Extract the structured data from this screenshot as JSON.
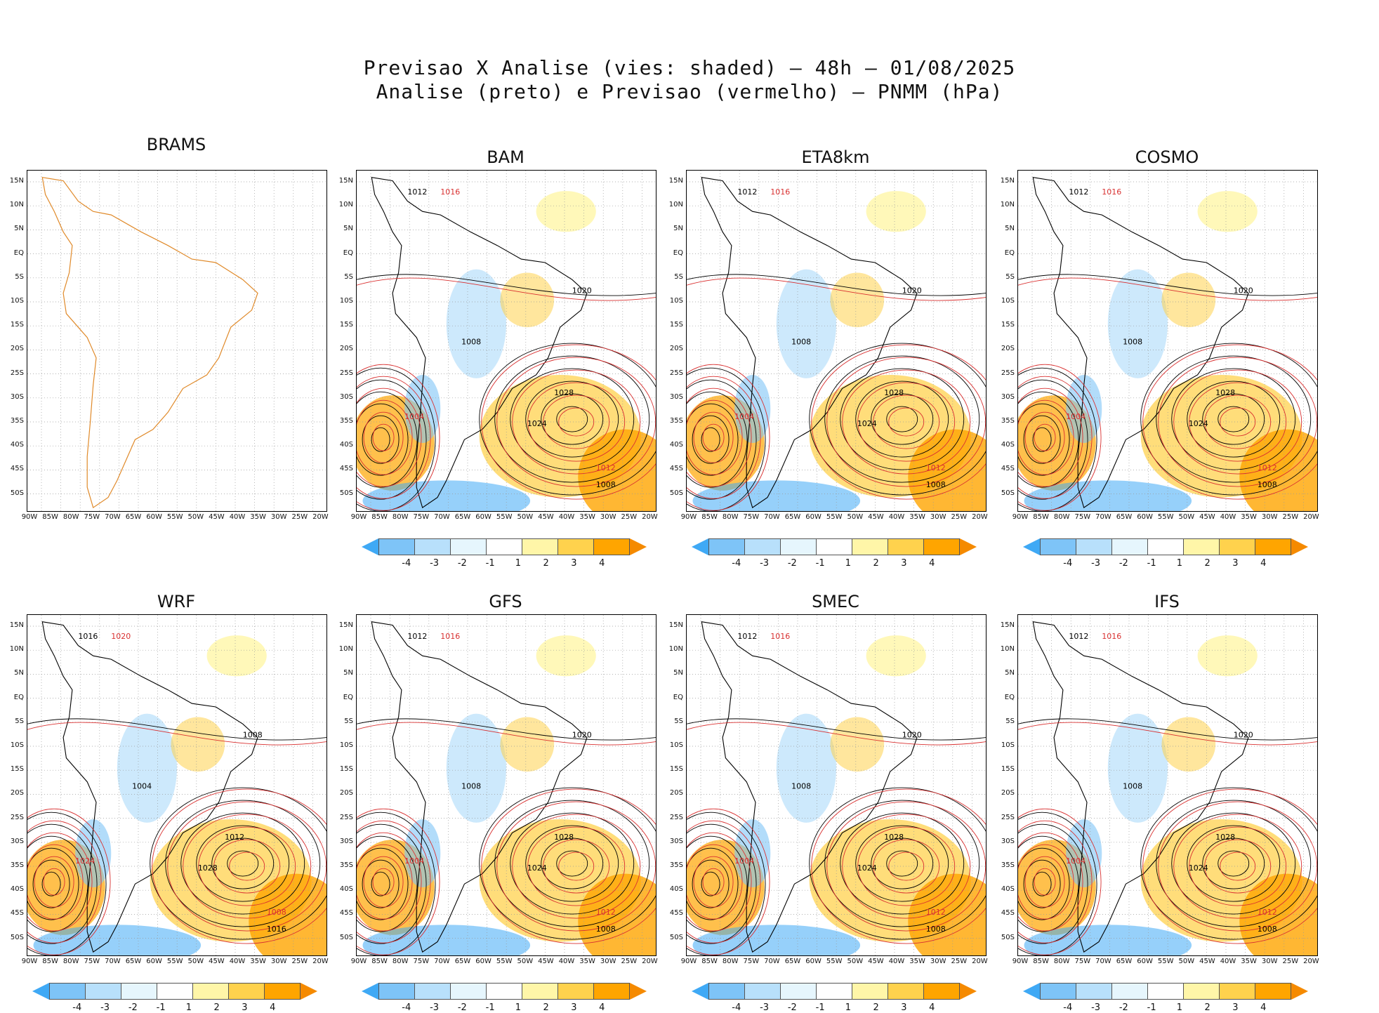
{
  "header": {
    "line1": "Previsao X Analise (vies: shaded) – 48h – 01/08/2025",
    "line2": "Analise (preto) e Previsao (vermelho) – PNMM (hPa)"
  },
  "axes": {
    "lat_labels": [
      "15N",
      "10N",
      "5N",
      "EQ",
      "5S",
      "10S",
      "15S",
      "20S",
      "25S",
      "30S",
      "35S",
      "40S",
      "45S",
      "50S"
    ],
    "lon_labels": [
      "90W",
      "85W",
      "80W",
      "75W",
      "70W",
      "65W",
      "60W",
      "55W",
      "50W",
      "45W",
      "40W",
      "35W",
      "30W",
      "25W",
      "20W"
    ]
  },
  "colorbar": {
    "labels": [
      "-4",
      "-3",
      "-2",
      "-1",
      "1",
      "2",
      "3",
      "4"
    ],
    "colors": [
      "#3fa9f5",
      "#7ec4f7",
      "#b8e0fb",
      "#e6f6fd",
      "#ffffff",
      "#fff6a8",
      "#ffd24d",
      "#ffa500",
      "#f58a00"
    ]
  },
  "colors": {
    "analysis": "#000000",
    "forecast": "#d93030",
    "coast": "#e08a2a"
  },
  "panels": [
    {
      "name": "BRAMS",
      "colorbar": false,
      "labels": []
    },
    {
      "name": "BAM",
      "colorbar": true,
      "labels": [
        "1012",
        "1016",
        "1020",
        "1008",
        "1004",
        "1024",
        "1028",
        "1012",
        "1008"
      ]
    },
    {
      "name": "ETA8km",
      "colorbar": true,
      "labels": [
        "1012",
        "1016",
        "1020",
        "1008",
        "1004",
        "1024",
        "1028",
        "1012",
        "1008"
      ]
    },
    {
      "name": "COSMO",
      "colorbar": true,
      "labels": [
        "1012",
        "1016",
        "1020",
        "1008",
        "1004",
        "1024",
        "1028",
        "1012",
        "1008"
      ]
    },
    {
      "name": "WRF",
      "colorbar": true,
      "labels": [
        "1016",
        "1020",
        "1008",
        "1004",
        "1024",
        "1028",
        "1012",
        "1008",
        "1016"
      ]
    },
    {
      "name": "GFS",
      "colorbar": true,
      "labels": [
        "1012",
        "1016",
        "1020",
        "1008",
        "1004",
        "1024",
        "1028",
        "1012",
        "1008"
      ]
    },
    {
      "name": "SMEC",
      "colorbar": true,
      "labels": [
        "1012",
        "1016",
        "1020",
        "1008",
        "1004",
        "1024",
        "1028",
        "1012",
        "1008"
      ]
    },
    {
      "name": "IFS",
      "colorbar": true,
      "labels": [
        "1012",
        "1016",
        "1020",
        "1008",
        "1004",
        "1024",
        "1028",
        "1012",
        "1008"
      ]
    }
  ]
}
